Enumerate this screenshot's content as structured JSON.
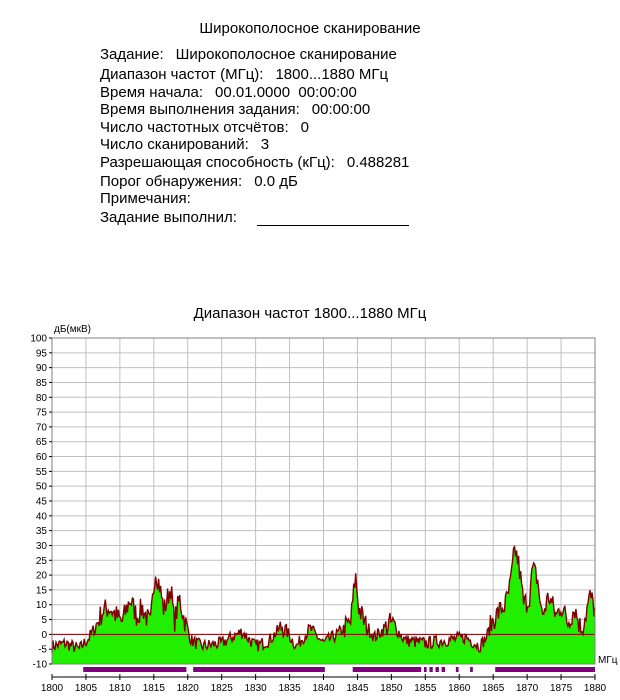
{
  "report": {
    "title": "Широкополосное сканирование",
    "fields": [
      {
        "label": "Задание:",
        "value": "Широкополосное сканирование"
      },
      {
        "label": "Диапазон частот (МГц):",
        "value": "1800...1880 МГц"
      },
      {
        "label": "Время начала:",
        "value": "00.01.0000  00:00:00"
      },
      {
        "label": "Время выполнения задания:",
        "value": "00:00:00"
      },
      {
        "label": "Число частотных отсчётов:",
        "value": "0"
      },
      {
        "label": "Число сканирований:",
        "value": "3"
      },
      {
        "label": "Разрешающая способность (кГц):",
        "value": "0.488281"
      },
      {
        "label": "Порог обнаружения:",
        "value": "0.0 дБ"
      },
      {
        "label": "Примечания:",
        "value": ""
      },
      {
        "label": "Задание выполнил:",
        "value": ""
      }
    ]
  },
  "chart_data": {
    "type": "area",
    "title": "Диапазон частот 1800...1880 МГц",
    "ylabel": "дБ(мкВ)",
    "xlabel": "МГц",
    "xlim": [
      1800,
      1880
    ],
    "ylim": [
      -10,
      100
    ],
    "x_ticks": [
      1800,
      1805,
      1810,
      1815,
      1820,
      1825,
      1830,
      1835,
      1840,
      1845,
      1850,
      1855,
      1860,
      1865,
      1870,
      1875,
      1880
    ],
    "y_ticks": [
      -10,
      -5,
      0,
      5,
      10,
      15,
      20,
      25,
      30,
      35,
      40,
      45,
      50,
      55,
      60,
      65,
      70,
      75,
      80,
      85,
      90,
      95,
      100
    ],
    "grid": true,
    "threshold_db": 0,
    "colors": {
      "fill": "#22ee00",
      "envelope": "#800000",
      "bands": "#800080",
      "grid": "#c0c0c0",
      "threshold": "#800000"
    },
    "series": [
      {
        "values": {
          "x": [
            1800,
            1802,
            1804,
            1805.5,
            1806.5,
            1807.5,
            1808.5,
            1809.2,
            1810.3,
            1811.5,
            1812.5,
            1813.3,
            1814.5,
            1815.2,
            1815.8,
            1816.5,
            1817.5,
            1818,
            1818.8,
            1819.5,
            1820.5,
            1822,
            1825,
            1828,
            1830,
            1832,
            1834,
            1836,
            1838,
            1840,
            1842,
            1844,
            1844.7,
            1845.2,
            1846,
            1847.5,
            1849,
            1850,
            1852,
            1855,
            1858,
            1861,
            1863,
            1864,
            1865,
            1866,
            1866.8,
            1867.5,
            1868.2,
            1868.8,
            1869.5,
            1870.3,
            1870.8,
            1871.5,
            1872.2,
            1873.2,
            1874.3,
            1875,
            1876,
            1877,
            1878,
            1879.3,
            1880
          ],
          "y": [
            -4,
            -3,
            -5,
            -1,
            3,
            8,
            9,
            7,
            4,
            12,
            6,
            9,
            3,
            22,
            17,
            8,
            16,
            4,
            12,
            5,
            -2,
            -4,
            -3,
            1,
            -4,
            -2,
            3,
            -4,
            2,
            -3,
            0,
            4,
            20,
            9,
            4,
            -1,
            2,
            4,
            -2,
            -3,
            -2,
            -1,
            -4,
            -1,
            5,
            8,
            10,
            16,
            29,
            23,
            10,
            12,
            22,
            19,
            6,
            13,
            6,
            10,
            4,
            9,
            1,
            13,
            8
          ]
        }
      }
    ],
    "occupied_bands": [
      [
        1804.6,
        1819.8
      ],
      [
        1820.8,
        1840.2
      ],
      [
        1844.3,
        1854.4
      ],
      [
        1854.8,
        1855.2
      ],
      [
        1855.6,
        1856.1
      ],
      [
        1856.5,
        1857.0
      ],
      [
        1857.4,
        1857.9
      ],
      [
        1859.5,
        1859.9
      ],
      [
        1861.6,
        1862.0
      ],
      [
        1865.3,
        1880
      ]
    ]
  }
}
